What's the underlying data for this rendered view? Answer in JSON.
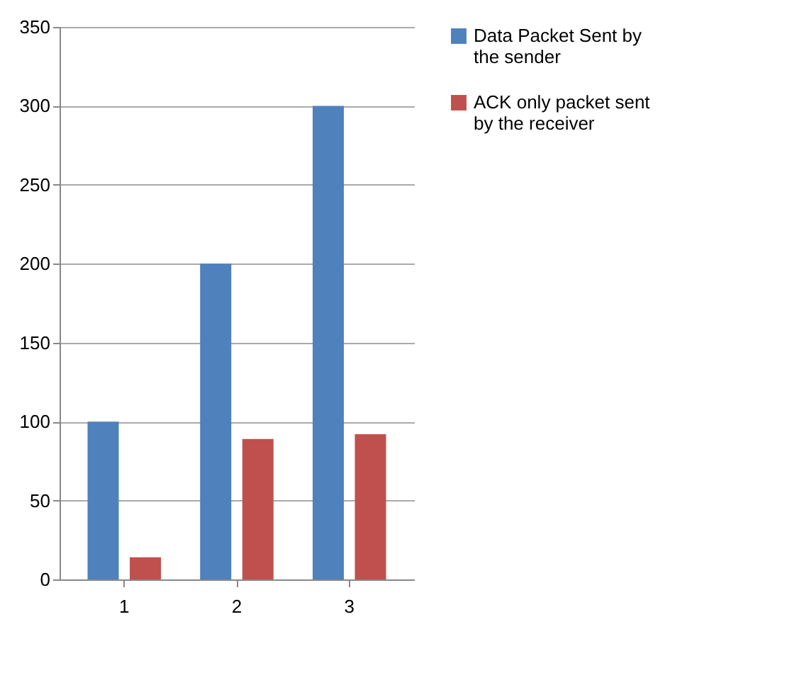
{
  "chart_data": {
    "type": "bar",
    "categories": [
      "1",
      "2",
      "3"
    ],
    "series": [
      {
        "name": "Data Packet Sent by the sender",
        "color": "#4f81bd",
        "values": [
          100,
          200,
          300
        ]
      },
      {
        "name": "ACK only packet sent by the receiver",
        "color": "#c0504d",
        "values": [
          14,
          89,
          92
        ]
      }
    ],
    "ylim": [
      0,
      350
    ],
    "yticks": [
      0,
      50,
      100,
      150,
      200,
      250,
      300,
      350
    ],
    "grid": "y",
    "legend": "right"
  }
}
